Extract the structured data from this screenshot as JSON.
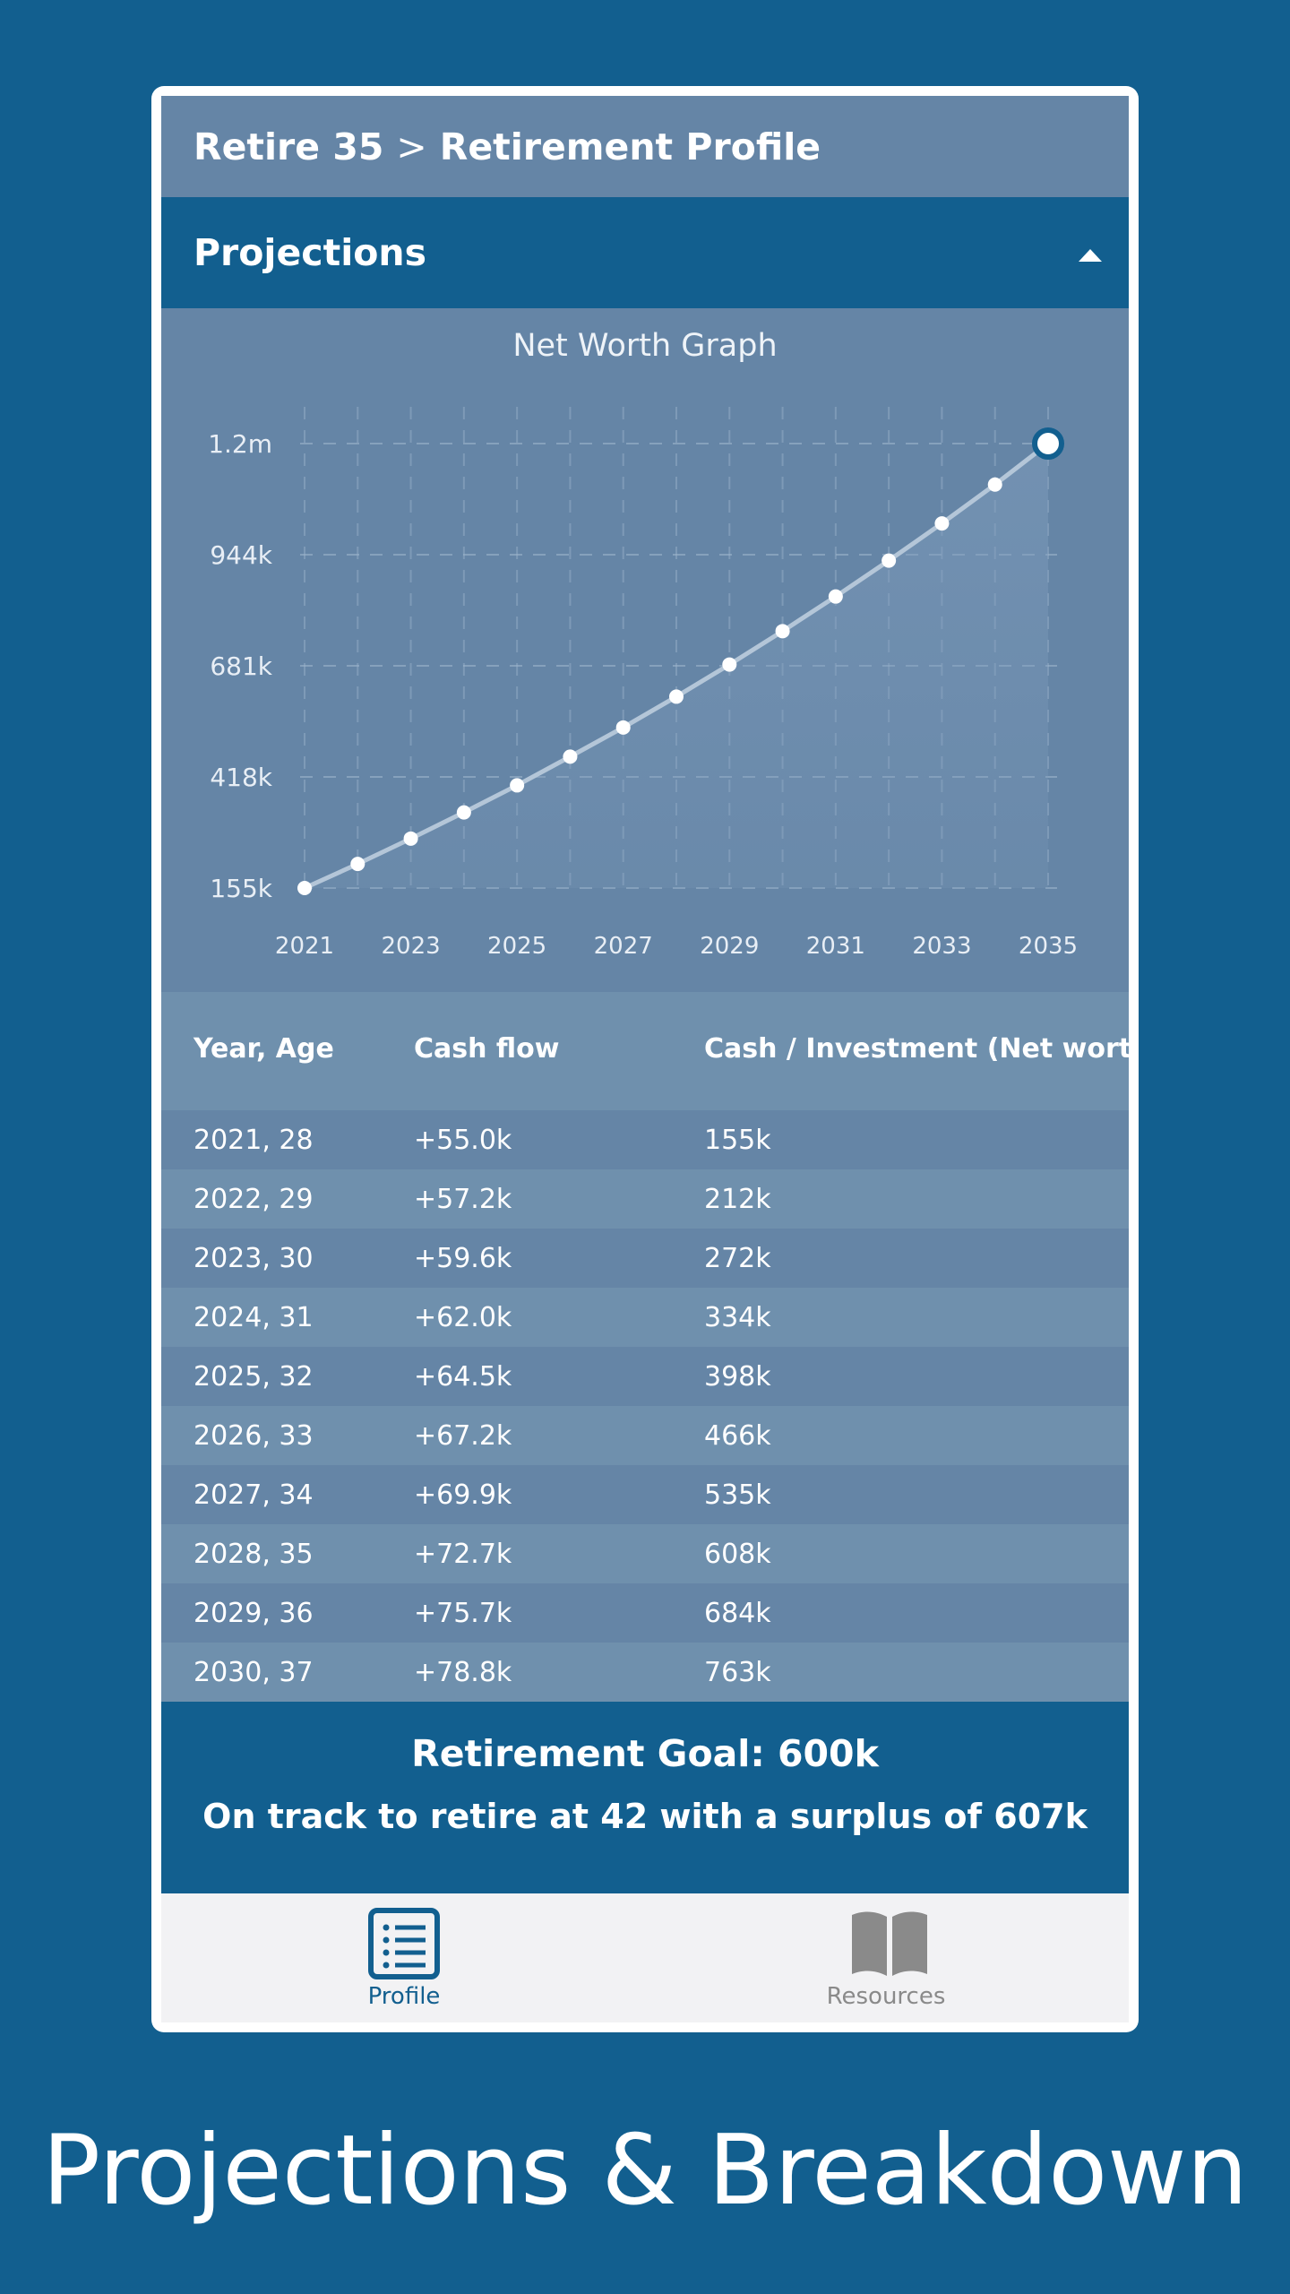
{
  "breadcrumb": {
    "root": "Retire 35",
    "separator": ">",
    "current": "Retirement Profile"
  },
  "section": {
    "title": "Projections"
  },
  "chart_data": {
    "type": "line",
    "title": "Net Worth Graph",
    "x": [
      2021,
      2022,
      2023,
      2024,
      2025,
      2026,
      2027,
      2028,
      2029,
      2030,
      2031,
      2032,
      2033,
      2034,
      2035
    ],
    "values": [
      155000,
      212000,
      272000,
      334000,
      398000,
      466000,
      535000,
      608000,
      684000,
      763000,
      845000,
      930000,
      1018000,
      1110000,
      1207000
    ],
    "x_tick_labels": [
      "2021",
      "2023",
      "2025",
      "2027",
      "2029",
      "2031",
      "2033",
      "2035"
    ],
    "y_tick_labels": [
      "155k",
      "418k",
      "681k",
      "944k",
      "1.2m"
    ],
    "y_ticks": [
      155000,
      418000,
      681000,
      944000,
      1207000
    ],
    "xlim": [
      2021,
      2035
    ],
    "ylim": [
      155000,
      1207000
    ],
    "grid": true,
    "highlight_last_point": true
  },
  "table": {
    "headers": [
      "Year, Age",
      "Cash flow",
      "Cash / Investment (Net worth)"
    ],
    "rows": [
      [
        "2021, 28",
        "+55.0k",
        "155k"
      ],
      [
        "2022, 29",
        "+57.2k",
        "212k"
      ],
      [
        "2023, 30",
        "+59.6k",
        "272k"
      ],
      [
        "2024, 31",
        "+62.0k",
        "334k"
      ],
      [
        "2025, 32",
        "+64.5k",
        "398k"
      ],
      [
        "2026, 33",
        "+67.2k",
        "466k"
      ],
      [
        "2027, 34",
        "+69.9k",
        "535k"
      ],
      [
        "2028, 35",
        "+72.7k",
        "608k"
      ],
      [
        "2029, 36",
        "+75.7k",
        "684k"
      ],
      [
        "2030, 37",
        "+78.8k",
        "763k"
      ]
    ]
  },
  "summary": {
    "goal": "Retirement Goal: 600k",
    "status": "On track to retire at 42 with a surplus of 607k"
  },
  "tabbar": {
    "profile": {
      "label": "Profile",
      "icon": "list-icon"
    },
    "resources": {
      "label": "Resources",
      "icon": "book-icon"
    }
  },
  "caption": "Projections & Breakdown",
  "colors": {
    "brand": "#125f8f",
    "panel": "#6585a6",
    "panel_alt": "#6f90ad",
    "tab_active": "#125f8f",
    "tab_inactive": "#8a8a8a"
  }
}
